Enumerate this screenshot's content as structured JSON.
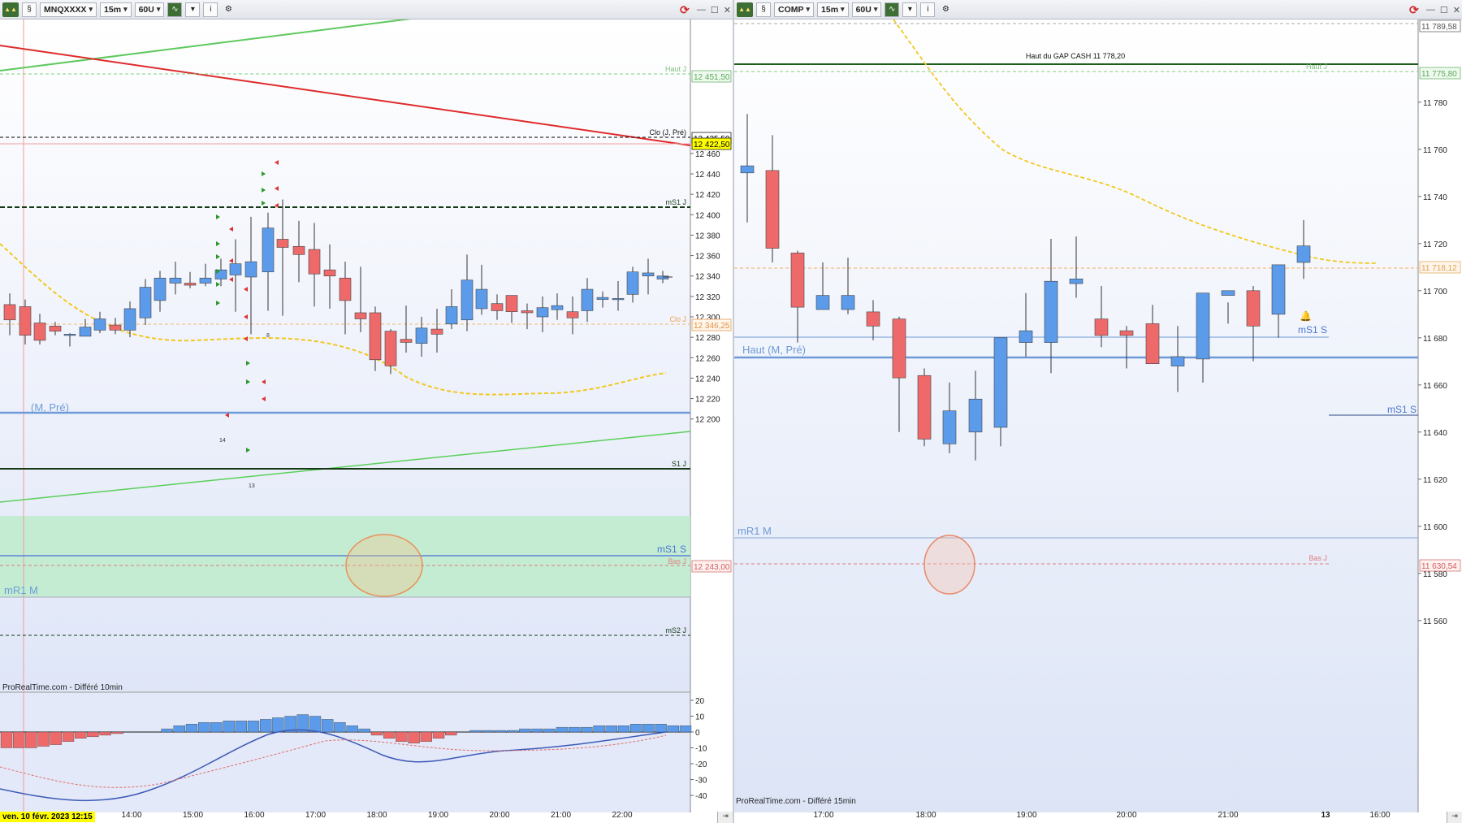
{
  "left": {
    "toolbar": {
      "symbol": "MNQXXXX",
      "interval": "15m",
      "units": "60U",
      "logo": "chart-logo",
      "chevron": "▾"
    },
    "source": "ProRealTime.com - Différé 10min",
    "date_badge": "ven. 10 févr. 2023 12:15",
    "time_labels": [
      "14:00",
      "15:00",
      "16:00",
      "17:00",
      "18:00",
      "19:00",
      "20:00",
      "21:00",
      "22:00"
    ],
    "price_ticks": [
      "12 460",
      "12 440",
      "12 420",
      "12 400",
      "12 380",
      "12 360",
      "12 340",
      "12 320",
      "12 300",
      "12 280",
      "12 260",
      "12 240",
      "12 220",
      "12 200"
    ],
    "indicator_ticks": [
      "20",
      "10",
      "0",
      "-10",
      "-20",
      "-30",
      "-40"
    ],
    "level_labels": {
      "haut_j": "Haut J",
      "haut_j_price": "12 451,50",
      "clo_j_pre": "Clo (J, Pré)",
      "clo_j_pre_price": "12 425,50",
      "current_price": "12 422,50",
      "ms1_j": "mS1 J",
      "clo_j": "Clo J",
      "clo_j_price": "12 346,25",
      "haut_m_pre": "(M, Pré)",
      "s1_j": "S1 J",
      "ms1_s": "mS1 S",
      "bas_j": "Bas J",
      "bas_j_price": "12 243,00",
      "mr1_m": "mR1 M",
      "ms2_j": "mS2 J"
    },
    "signal_counts": [
      "14",
      "13",
      "8"
    ]
  },
  "right": {
    "toolbar": {
      "symbol": "COMP",
      "interval": "15m",
      "units": "60U",
      "logo": "chart-logo",
      "chevron": "▾"
    },
    "source": "ProRealTime.com - Différé 15min",
    "time_labels": [
      "17:00",
      "18:00",
      "19:00",
      "20:00",
      "21:00",
      "13",
      "16:00"
    ],
    "price_ticks": [
      "11 780",
      "11 760",
      "11 740",
      "11 720",
      "11 700",
      "11 680",
      "11 660",
      "11 640",
      "11 620",
      "11 600",
      "11 580",
      "11 560"
    ],
    "level_labels": {
      "top_price": "11 789,58",
      "gap_cash": "Haut du GAP CASH 11 778,20",
      "haut_j": "Haut J",
      "haut_j_price": "11 775,80",
      "orange_price": "11 718,12",
      "ms1_s": "mS1 S",
      "haut_m_pre": "Haut (M, Pré)",
      "ms1_s_2": "mS1 S",
      "mr1_m": "mR1 M",
      "bas_j": "Bas J",
      "bas_j_price": "11 630,54"
    }
  },
  "colors": {
    "up": "#5b9bea",
    "down": "#ee6a6a",
    "zone": "#bdeccb",
    "ma": "#f2c81e"
  }
}
